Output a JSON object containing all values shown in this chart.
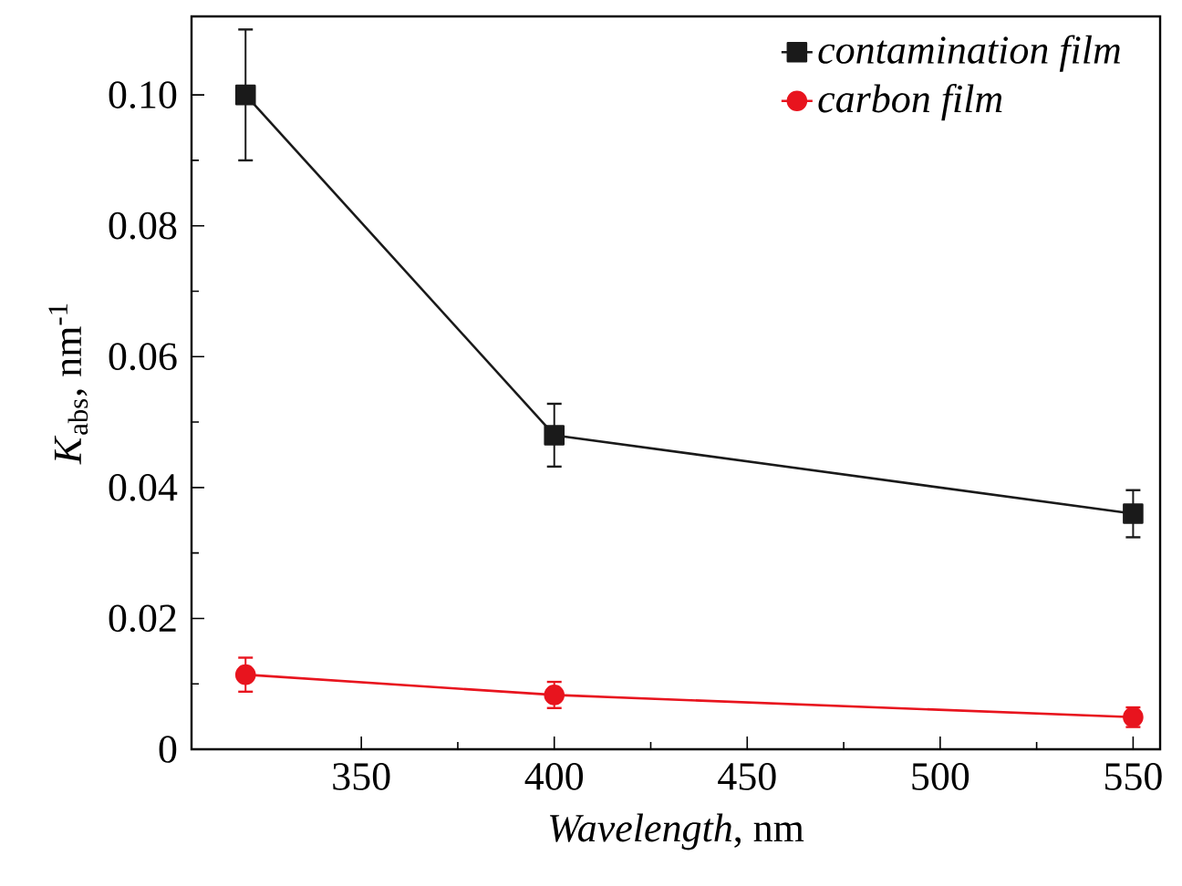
{
  "chart_data": {
    "type": "line",
    "xlabel": "*Wavelength*, nm",
    "ylabel": "*K*$_{abs}$, nm$^{-1}$",
    "x": [
      320,
      400,
      550
    ],
    "series": [
      {
        "name": "contamination film",
        "color": "#1a1a1a",
        "marker": "square",
        "values": [
          0.1,
          0.048,
          0.036
        ],
        "errors": [
          0.01,
          0.0048,
          0.0036
        ]
      },
      {
        "name": "carbon film",
        "color": "#e8141e",
        "marker": "circle",
        "values": [
          0.0114,
          0.0083,
          0.0049
        ],
        "errors": [
          0.0026,
          0.002,
          0.0015
        ]
      }
    ],
    "xlim": [
      306,
      557
    ],
    "xticks": [
      350,
      400,
      450,
      500,
      550
    ],
    "ylim": [
      0,
      0.112
    ],
    "yticks": [
      0,
      0.02,
      0.04,
      0.06,
      0.08,
      {
        "value": 0.1,
        "label": "0.10"
      }
    ],
    "grid": false,
    "legend": "top right",
    "line_style": "solid"
  }
}
